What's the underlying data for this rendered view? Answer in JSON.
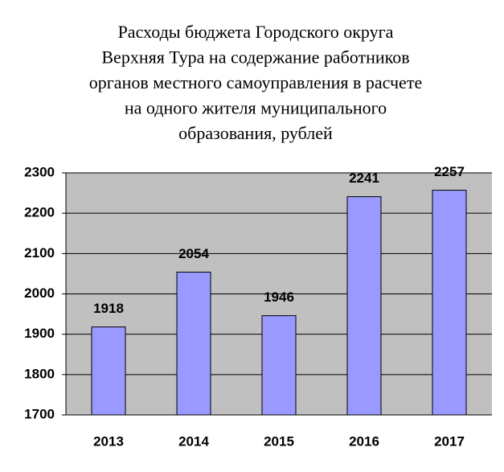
{
  "chart_data": {
    "type": "bar",
    "title": [
      "Расходы бюджета Городского округа",
      "Верхняя Тура на содержание работников",
      "органов местного самоуправления в расчете",
      "на одного жителя муниципального",
      "образования, рублей"
    ],
    "categories": [
      "2013",
      "2014",
      "2015",
      "2016",
      "2017"
    ],
    "values": [
      1918,
      2054,
      1946,
      2241,
      2257
    ],
    "color": "#9999ff",
    "ylim": [
      1700,
      2300
    ],
    "yticks": [
      1700,
      1800,
      1900,
      2000,
      2100,
      2200,
      2300
    ],
    "grid": true
  }
}
